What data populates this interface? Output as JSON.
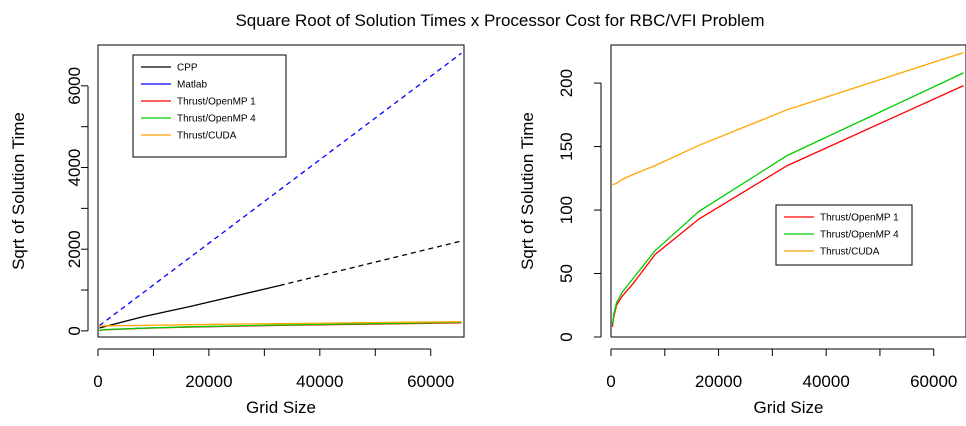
{
  "figure": {
    "title": "Square Root of Solution Times x Processor Cost for RBC/VFI Problem"
  },
  "chart_data": [
    {
      "type": "line",
      "xlabel": "Grid Size",
      "ylabel": "Sqrt of Solution Time",
      "xlim": [
        0,
        66000
      ],
      "ylim": [
        -150,
        7000
      ],
      "xticks": [
        0,
        20000,
        40000,
        60000
      ],
      "yticks": [
        0,
        2000,
        4000,
        6000
      ],
      "legend_position": "top-left",
      "series": [
        {
          "name": "CPP",
          "color": "#000000",
          "dashed_from_x": 32768,
          "x": [
            256,
            8192,
            16384,
            32768,
            65536
          ],
          "y": [
            70,
            350,
            590,
            1110,
            2200
          ]
        },
        {
          "name": "Matlab",
          "color": "#0000ff",
          "dashed": true,
          "x": [
            256,
            65536
          ],
          "y": [
            130,
            6800
          ]
        },
        {
          "name": "Thrust/OpenMP 1",
          "color": "#ff0000",
          "x": [
            256,
            512,
            1024,
            2048,
            4096,
            8192,
            16384,
            32768,
            65536
          ],
          "y": [
            8,
            16,
            25,
            32,
            42,
            65,
            93,
            135,
            198
          ]
        },
        {
          "name": "Thrust/OpenMP 4",
          "color": "#00cc00",
          "x": [
            256,
            512,
            1024,
            2048,
            4096,
            8192,
            16384,
            32768,
            65536
          ],
          "y": [
            10,
            18,
            27,
            35,
            46,
            68,
            99,
            143,
            208
          ]
        },
        {
          "name": "Thrust/CUDA",
          "color": "#ffa500",
          "x": [
            256,
            1024,
            2048,
            4096,
            8192,
            16384,
            32768,
            65536
          ],
          "y": [
            120,
            121,
            124,
            128,
            135,
            151,
            179,
            224
          ]
        }
      ]
    },
    {
      "type": "line",
      "xlabel": "Grid Size",
      "ylabel": "Sqrt of Solution Time",
      "xlim": [
        0,
        66000
      ],
      "ylim": [
        0,
        230
      ],
      "xticks": [
        0,
        20000,
        40000,
        60000
      ],
      "yticks": [
        0,
        50,
        100,
        150,
        200
      ],
      "legend_position": "center-right",
      "series": [
        {
          "name": "Thrust/OpenMP 1",
          "color": "#ff0000",
          "x": [
            256,
            512,
            1024,
            2048,
            4096,
            8192,
            16384,
            32768,
            65536
          ],
          "y": [
            8,
            16,
            25,
            32,
            42,
            65,
            93,
            135,
            198
          ]
        },
        {
          "name": "Thrust/OpenMP 4",
          "color": "#00cc00",
          "x": [
            256,
            512,
            1024,
            2048,
            4096,
            8192,
            16384,
            32768,
            65536
          ],
          "y": [
            10,
            18,
            27,
            35,
            46,
            68,
            99,
            143,
            208
          ]
        },
        {
          "name": "Thrust/CUDA",
          "color": "#ffa500",
          "x": [
            256,
            1024,
            2048,
            4096,
            8192,
            16384,
            32768,
            65536
          ],
          "y": [
            120,
            121,
            124,
            128,
            135,
            151,
            179,
            224
          ]
        }
      ]
    }
  ]
}
